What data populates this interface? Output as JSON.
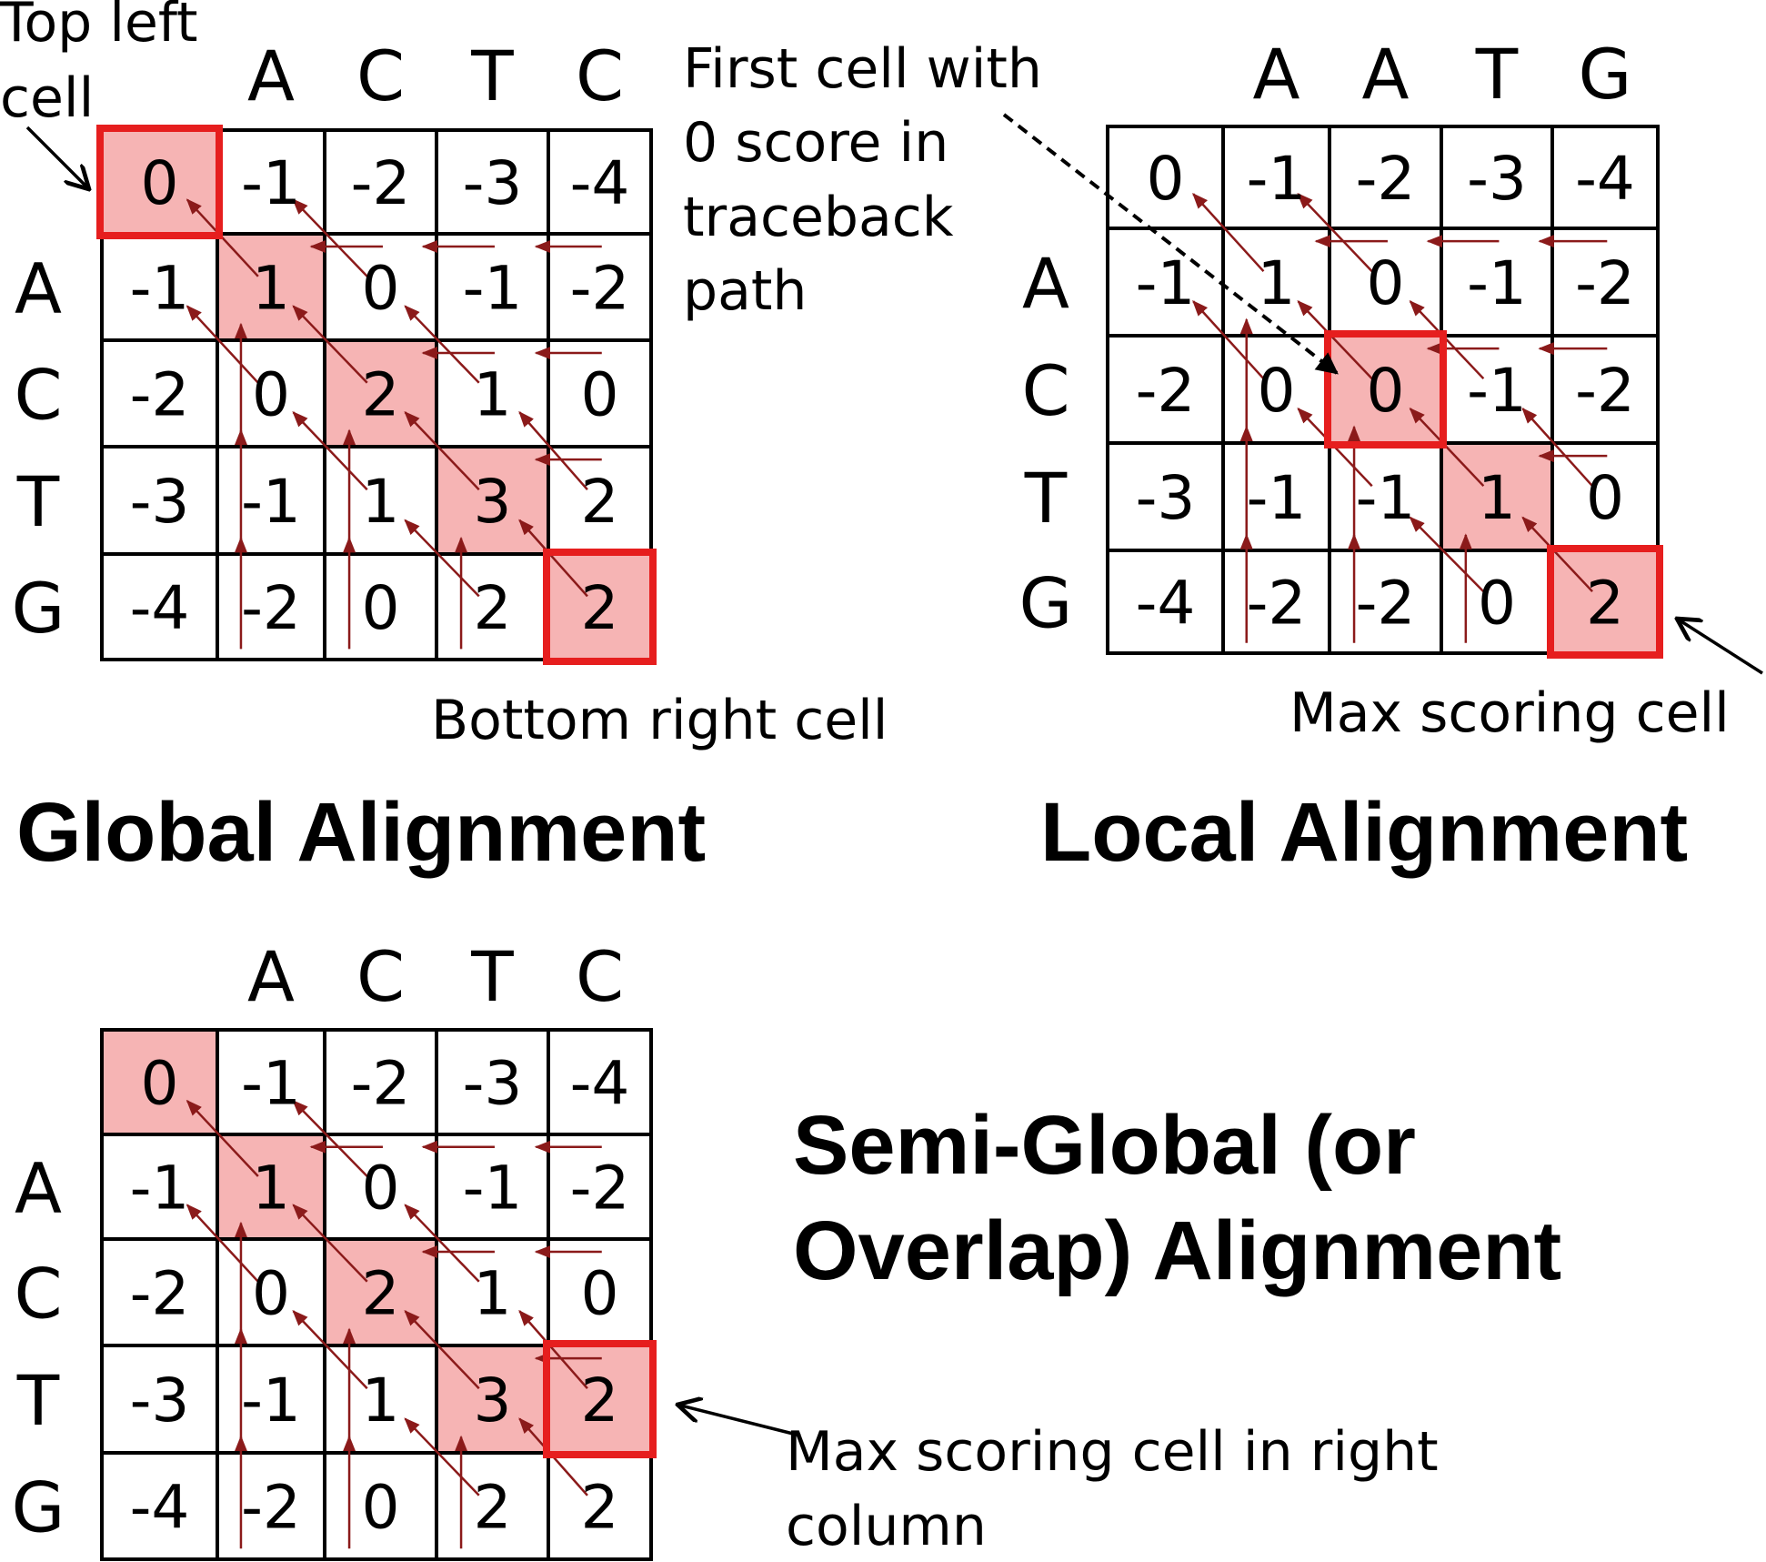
{
  "colors": {
    "highlight_fill": "#f6b4b4",
    "highlight_border": "#e61e1e",
    "arrow": "#8b1a1a",
    "grid": "#000000"
  },
  "global": {
    "title": "Global Alignment",
    "cols": [
      "A",
      "C",
      "T",
      "C"
    ],
    "rows": [
      "A",
      "C",
      "T",
      "G"
    ],
    "matrix": [
      [
        "0",
        "-1",
        "-2",
        "-3",
        "-4"
      ],
      [
        "-1",
        "1",
        "0",
        "-1",
        "-2"
      ],
      [
        "-2",
        "0",
        "2",
        "1",
        "0"
      ],
      [
        "-3",
        "-1",
        "1",
        "3",
        "2"
      ],
      [
        "-4",
        "-2",
        "0",
        "2",
        "2"
      ]
    ],
    "shaded": [
      [
        0,
        0
      ],
      [
        1,
        1
      ],
      [
        2,
        2
      ],
      [
        3,
        3
      ],
      [
        4,
        4
      ]
    ],
    "boxed": [
      [
        0,
        0
      ],
      [
        4,
        4
      ]
    ],
    "note_top": [
      "Top left",
      "cell"
    ],
    "note_bottom": "Bottom right cell"
  },
  "local": {
    "title": "Local Alignment",
    "cols": [
      "A",
      "A",
      "T",
      "G"
    ],
    "rows": [
      "A",
      "C",
      "T",
      "G"
    ],
    "matrix": [
      [
        "0",
        "-1",
        "-2",
        "-3",
        "-4"
      ],
      [
        "-1",
        "1",
        "0",
        "-1",
        "-2"
      ],
      [
        "-2",
        "0",
        "0",
        "-1",
        "-2"
      ],
      [
        "-3",
        "-1",
        "-1",
        "1",
        "0"
      ],
      [
        "-4",
        "-2",
        "-2",
        "0",
        "2"
      ]
    ],
    "shaded": [
      [
        2,
        2
      ],
      [
        3,
        3
      ],
      [
        4,
        4
      ]
    ],
    "boxed": [
      [
        2,
        2
      ],
      [
        4,
        4
      ]
    ],
    "note_first": [
      "First cell with",
      "0 score in",
      "traceback",
      "path"
    ],
    "note_max": "Max scoring cell"
  },
  "semi": {
    "title_lines": [
      "Semi-Global (or",
      "Overlap) Alignment"
    ],
    "cols": [
      "A",
      "C",
      "T",
      "C"
    ],
    "rows": [
      "A",
      "C",
      "T",
      "G"
    ],
    "matrix": [
      [
        "0",
        "-1",
        "-2",
        "-3",
        "-4"
      ],
      [
        "-1",
        "1",
        "0",
        "-1",
        "-2"
      ],
      [
        "-2",
        "0",
        "2",
        "1",
        "0"
      ],
      [
        "-3",
        "-1",
        "1",
        "3",
        "2"
      ],
      [
        "-4",
        "-2",
        "0",
        "2",
        "2"
      ]
    ],
    "shaded": [
      [
        0,
        0
      ],
      [
        1,
        1
      ],
      [
        2,
        2
      ],
      [
        3,
        3
      ],
      [
        3,
        4
      ]
    ],
    "boxed": [
      [
        3,
        4
      ]
    ],
    "note_max": [
      "Max scoring cell in right",
      "column"
    ]
  }
}
